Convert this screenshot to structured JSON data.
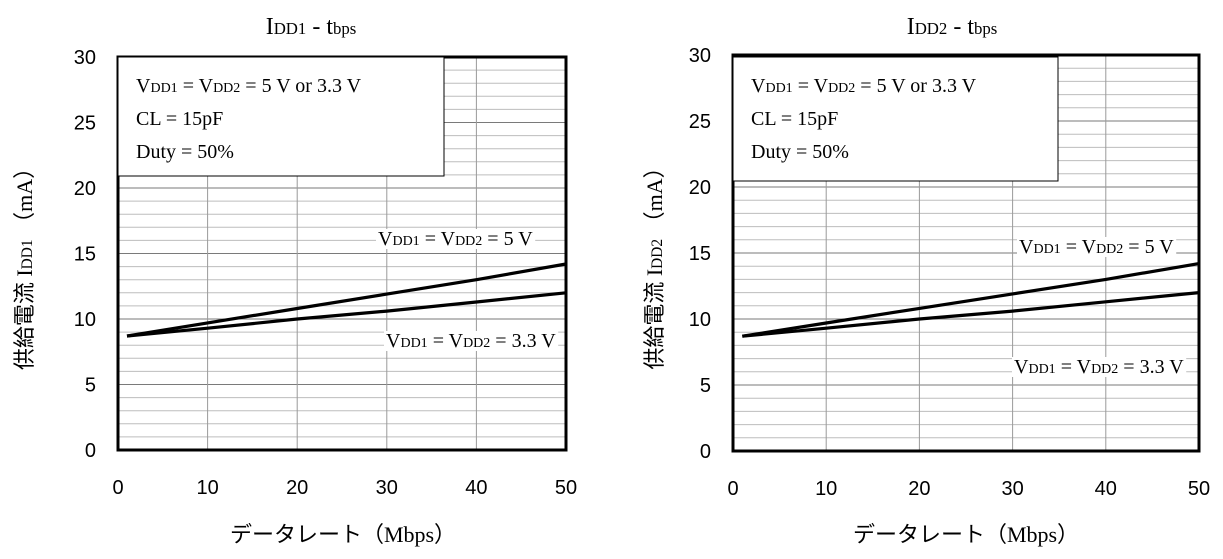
{
  "chart_data": [
    {
      "type": "line",
      "title": "I_DD1 - t_bps",
      "title_parts": [
        [
          "I",
          ""
        ],
        [
          "DD1",
          "small"
        ],
        [
          " - t",
          ""
        ],
        [
          "bps",
          "small"
        ]
      ],
      "xlabel": "データレート（Mbps）",
      "ylabel": "供給電流 I_DD1 （mA）",
      "ylabel_parts": [
        [
          "供給電流 I",
          ""
        ],
        [
          "DD1",
          "small"
        ],
        [
          " （mA）",
          ""
        ]
      ],
      "xlim": [
        0,
        50
      ],
      "ylim": [
        0,
        30
      ],
      "xticks": [
        0,
        10,
        20,
        30,
        40,
        50
      ],
      "yticks": [
        0,
        5,
        10,
        15,
        20,
        25,
        30
      ],
      "grid": true,
      "conditions": [
        [
          [
            "V",
            ""
          ],
          [
            "DD1",
            "small"
          ],
          [
            " = V",
            ""
          ],
          [
            "DD2",
            "small"
          ],
          [
            " = 5 V or 3.3 V",
            ""
          ]
        ],
        [
          [
            "CL = 15pF",
            ""
          ]
        ],
        [
          [
            "Duty = 50%",
            ""
          ]
        ]
      ],
      "series": [
        {
          "name": "V_DD1 = V_DD2 = 5 V",
          "name_parts": [
            [
              "V",
              ""
            ],
            [
              "DD1",
              "small"
            ],
            [
              " = V",
              ""
            ],
            [
              "DD2",
              "small"
            ],
            [
              " = 5 V",
              ""
            ]
          ],
          "x": [
            1,
            10,
            20,
            30,
            40,
            50
          ],
          "y": [
            8.7,
            9.7,
            10.8,
            11.9,
            13.0,
            14.2
          ]
        },
        {
          "name": "V_DD1 = V_DD2 = 3.3 V",
          "name_parts": [
            [
              "V",
              ""
            ],
            [
              "DD1",
              "small"
            ],
            [
              " = V",
              ""
            ],
            [
              "DD2",
              "small"
            ],
            [
              " = 3.3 V",
              ""
            ]
          ],
          "x": [
            1,
            10,
            20,
            30,
            40,
            50
          ],
          "y": [
            8.7,
            9.3,
            10.0,
            10.6,
            11.3,
            12.0
          ]
        }
      ]
    },
    {
      "type": "line",
      "title": "I_DD2 - t_bps",
      "title_parts": [
        [
          "I",
          ""
        ],
        [
          "DD2",
          "small"
        ],
        [
          " - t",
          ""
        ],
        [
          "bps",
          "small"
        ]
      ],
      "xlabel": "データレート（Mbps）",
      "ylabel": "供給電流 I_DD2 （mA）",
      "ylabel_parts": [
        [
          "供給電流 I",
          ""
        ],
        [
          "DD2",
          "small"
        ],
        [
          " （mA）",
          ""
        ]
      ],
      "xlim": [
        0,
        50
      ],
      "ylim": [
        0,
        30
      ],
      "xticks": [
        0,
        10,
        20,
        30,
        40,
        50
      ],
      "yticks": [
        0,
        5,
        10,
        15,
        20,
        25,
        30
      ],
      "grid": true,
      "conditions": [
        [
          [
            "V",
            ""
          ],
          [
            "DD1",
            "small"
          ],
          [
            " = V",
            ""
          ],
          [
            "DD2",
            "small"
          ],
          [
            " = 5 V or 3.3 V",
            ""
          ]
        ],
        [
          [
            "CL = 15pF",
            ""
          ]
        ],
        [
          [
            "Duty = 50%",
            ""
          ]
        ]
      ],
      "series": [
        {
          "name": "V_DD1 = V_DD2 = 5 V",
          "name_parts": [
            [
              "V",
              ""
            ],
            [
              "DD1",
              "small"
            ],
            [
              " = V",
              ""
            ],
            [
              "DD2",
              "small"
            ],
            [
              " = 5 V",
              ""
            ]
          ],
          "x": [
            1,
            10,
            20,
            30,
            40,
            50
          ],
          "y": [
            8.7,
            9.7,
            10.8,
            11.9,
            13.0,
            14.2
          ]
        },
        {
          "name": "V_DD1 = V_DD2 = 3.3 V",
          "name_parts": [
            [
              "V",
              ""
            ],
            [
              "DD1",
              "small"
            ],
            [
              " = V",
              ""
            ],
            [
              "DD2",
              "small"
            ],
            [
              " = 3.3 V",
              ""
            ]
          ],
          "x": [
            1,
            10,
            20,
            30,
            40,
            50
          ],
          "y": [
            8.7,
            9.3,
            10.0,
            10.6,
            11.3,
            12.0
          ]
        }
      ]
    }
  ]
}
